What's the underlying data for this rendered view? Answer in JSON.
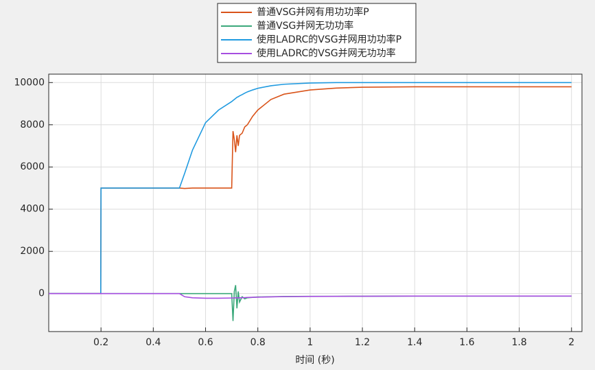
{
  "chart_data": {
    "type": "line",
    "x_label": "时间 (秒)",
    "x": [
      0,
      0.199,
      0.2,
      0.3,
      0.4,
      0.5,
      0.52,
      0.55,
      0.6,
      0.65,
      0.7,
      0.705,
      0.71,
      0.715,
      0.72,
      0.725,
      0.73,
      0.74,
      0.75,
      0.76,
      0.78,
      0.8,
      0.85,
      0.9,
      1.0,
      1.1,
      1.2,
      1.4,
      1.6,
      1.8,
      2.0
    ],
    "series": [
      {
        "name": "普通VSG并网有用功功率P",
        "color": "#d95319",
        "values": [
          0,
          0,
          5000,
          5000,
          5000,
          5000,
          4980,
          5000,
          5000,
          5000,
          5000,
          7700,
          7300,
          6700,
          7500,
          7000,
          7500,
          7600,
          7900,
          8000,
          8400,
          8700,
          9200,
          9450,
          9650,
          9740,
          9780,
          9800,
          9800,
          9800,
          9800
        ]
      },
      {
        "name": "普通VSG并网无功功率",
        "color": "#3aa87a",
        "values": [
          0,
          0,
          0,
          0,
          0,
          0,
          0,
          0,
          0,
          0,
          0,
          -1300,
          100,
          400,
          -700,
          100,
          -400,
          -150,
          -250,
          -200,
          -180,
          -160,
          -150,
          -140,
          -130,
          -130,
          -125,
          -120,
          -120,
          -120,
          -120
        ]
      },
      {
        "name": "使用LADRC的VSG并网用功功率P",
        "color": "#1f9ae0",
        "values": [
          0,
          0,
          5000,
          5000,
          5000,
          5000,
          5700,
          6800,
          8100,
          8700,
          9100,
          9150,
          9200,
          9250,
          9300,
          9330,
          9370,
          9430,
          9500,
          9560,
          9650,
          9730,
          9850,
          9920,
          9980,
          10000,
          10000,
          10000,
          10000,
          10000,
          10000
        ]
      },
      {
        "name": "使用LADRC的VSG并网无功功率",
        "color": "#a64de0",
        "values": [
          0,
          0,
          0,
          0,
          0,
          0,
          -150,
          -200,
          -220,
          -220,
          -210,
          -210,
          -205,
          -205,
          -200,
          -200,
          -200,
          -195,
          -190,
          -185,
          -175,
          -170,
          -155,
          -145,
          -135,
          -130,
          -125,
          -120,
          -120,
          -120,
          -120
        ]
      }
    ],
    "xlim": [
      0,
      2.04
    ],
    "ylim": [
      -1800,
      10400
    ],
    "xticks": [
      0.2,
      0.4,
      0.6,
      0.8,
      1,
      1.2,
      1.4,
      1.6,
      1.8,
      2
    ],
    "yticks": [
      0,
      2000,
      4000,
      6000,
      8000,
      10000
    ],
    "grid": true,
    "legend": "top"
  }
}
